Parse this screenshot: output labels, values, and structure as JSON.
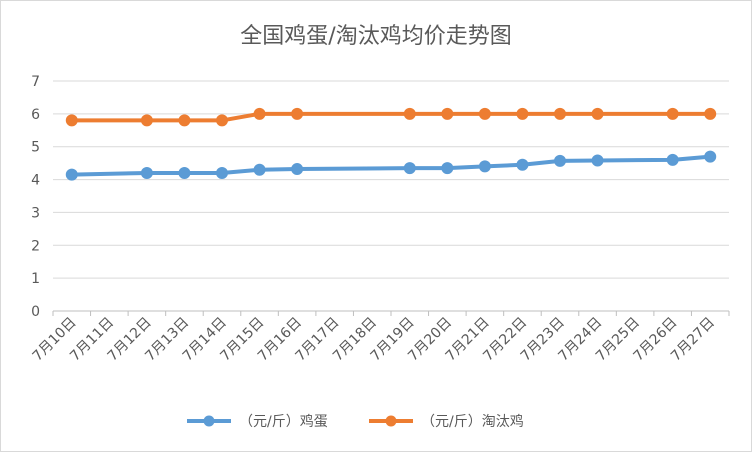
{
  "chart_data": {
    "type": "line",
    "title": "全国鸡蛋/淘汰鸡均价走势图",
    "categories": [
      "7月10日",
      "7月11日",
      "7月12日",
      "7月13日",
      "7月14日",
      "7月15日",
      "7月16日",
      "7月17日",
      "7月18日",
      "7月19日",
      "7月20日",
      "7月21日",
      "7月22日",
      "7月23日",
      "7月24日",
      "7月25日",
      "7月26日",
      "7月27日"
    ],
    "series": [
      {
        "name": "（元/斤）鸡蛋",
        "color": "#5b9bd5",
        "values": [
          4.15,
          null,
          4.2,
          4.2,
          4.2,
          4.3,
          4.32,
          null,
          null,
          4.35,
          4.35,
          4.4,
          4.45,
          4.57,
          4.58,
          null,
          4.6,
          4.7
        ]
      },
      {
        "name": "（元/斤）淘汰鸡",
        "color": "#ed7d31",
        "values": [
          5.8,
          null,
          5.8,
          5.8,
          5.8,
          6.0,
          6.0,
          null,
          null,
          6.0,
          6.0,
          6.0,
          6.0,
          6.0,
          6.0,
          null,
          6.0,
          6.0
        ]
      }
    ],
    "yticks": [
      0,
      1,
      2,
      3,
      4,
      5,
      6,
      7
    ],
    "ylim": [
      0,
      7
    ],
    "grid": true,
    "legend_position": "bottom"
  }
}
